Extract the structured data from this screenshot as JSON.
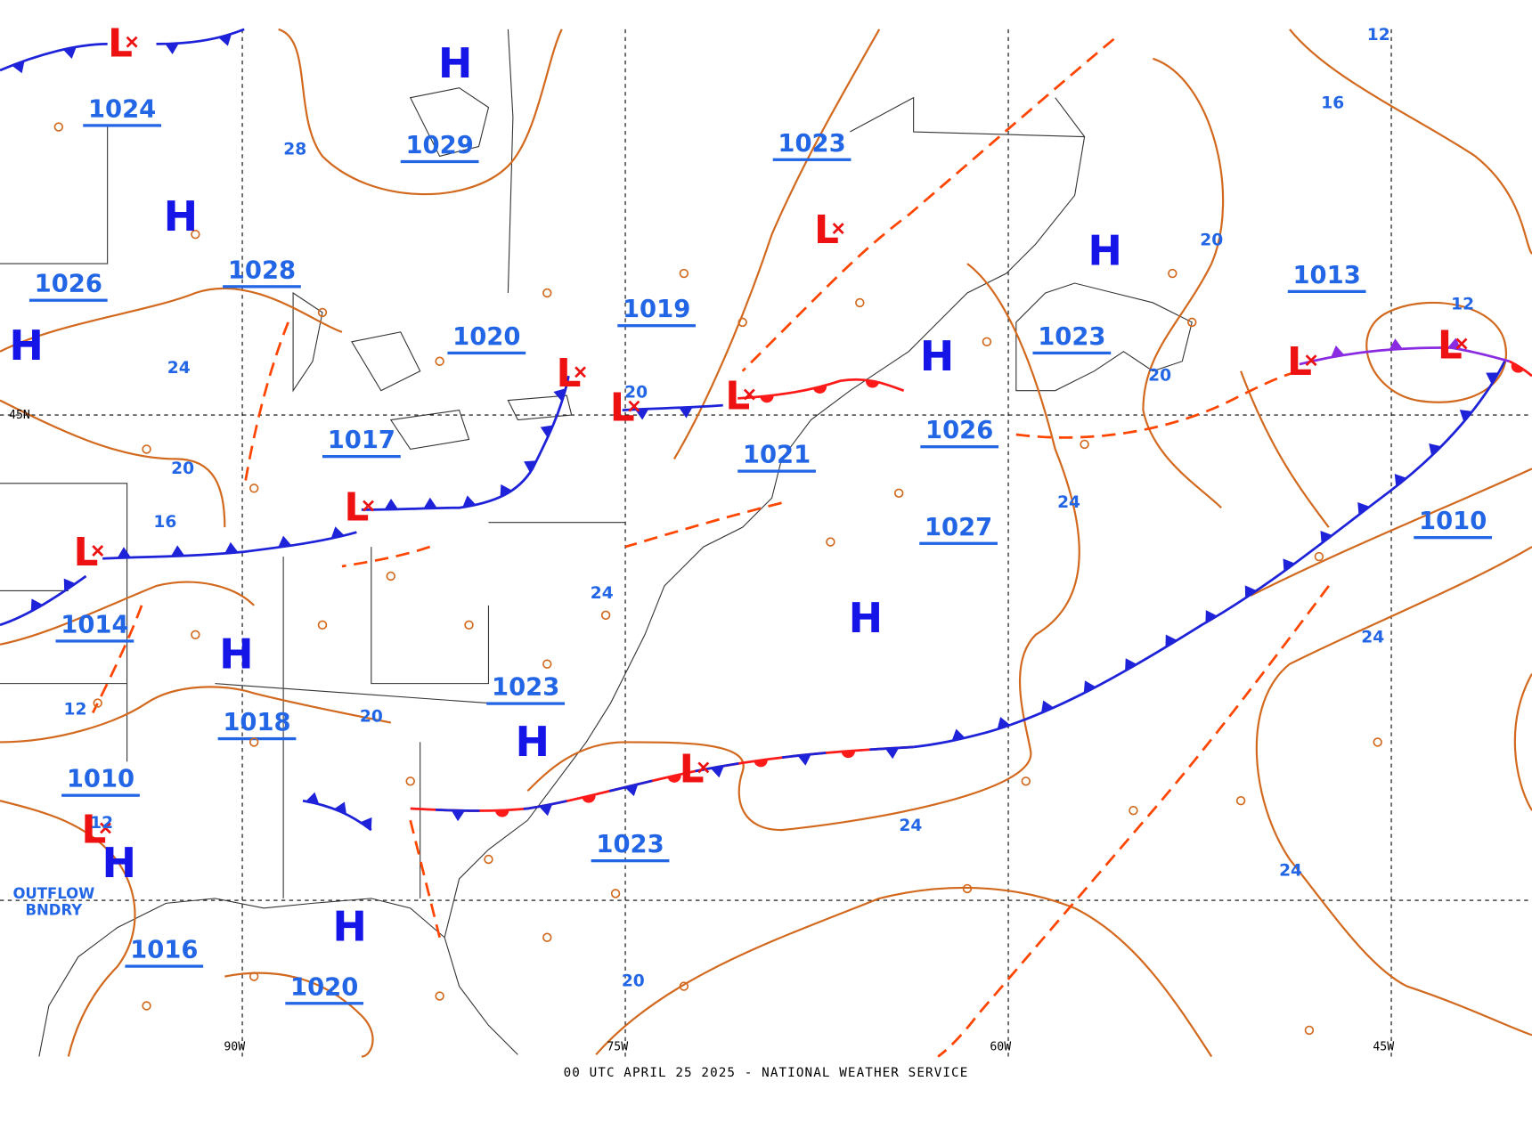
{
  "footer": "00 UTC APRIL 25 2025 - NATIONAL WEATHER SERVICE",
  "grid_labels": [
    "90W",
    "75W",
    "60W",
    "45W",
    "45N"
  ],
  "highs": [
    "H",
    "H",
    "H",
    "H",
    "H",
    "H",
    "H",
    "H",
    "H",
    "H"
  ],
  "lows": [
    "L",
    "L",
    "L",
    "L",
    "L",
    "L",
    "L",
    "L",
    "L",
    "L",
    "L"
  ],
  "pressure_labels": [
    1024,
    1029,
    1028,
    1026,
    1020,
    1019,
    1023,
    1017,
    1021,
    1026,
    1023,
    1027,
    1013,
    1010,
    1014,
    1018,
    1023,
    1010,
    1023,
    1016,
    1020
  ],
  "contour_labels": [
    12,
    16,
    20,
    12,
    20,
    24,
    24,
    24,
    28,
    24,
    20,
    16,
    20,
    24,
    20,
    12,
    12,
    24,
    20
  ],
  "annotations": [
    "OUTFLOW",
    "BNDRY"
  ]
}
